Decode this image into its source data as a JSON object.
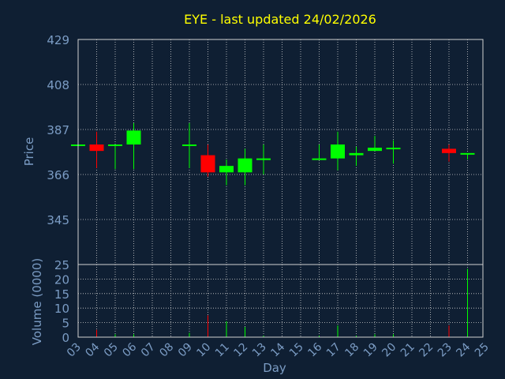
{
  "chart_data": [
    {
      "type": "candlestick",
      "title": "EYE - last updated 24/02/2026",
      "ylabel": "Price",
      "xlabel": "",
      "ylim": [
        324,
        429
      ],
      "yticks": [
        "429",
        "408",
        "387",
        "366",
        "345"
      ],
      "ytick_values": [
        429,
        408,
        387,
        366,
        345
      ],
      "grid": true,
      "colors": {
        "up": "#00ff00",
        "down": "#ff0000",
        "title": "#ffff00",
        "axis_text": "#7b9cc4",
        "background": "#0f1f33",
        "grid": "#d0d0d0"
      },
      "candles": [
        {
          "day": 3,
          "open": 380,
          "high": 380,
          "low": 380,
          "close": 380
        },
        {
          "day": 4,
          "open": 380,
          "high": 386,
          "low": 369,
          "close": 377
        },
        {
          "day": 5,
          "open": 380,
          "high": 380,
          "low": 368.5,
          "close": 380
        },
        {
          "day": 6,
          "open": 380,
          "high": 390,
          "low": 368.5,
          "close": 386.5
        },
        {
          "day": 9,
          "open": 380,
          "high": 390,
          "low": 369,
          "close": 380
        },
        {
          "day": 10,
          "open": 375,
          "high": 380,
          "low": 365,
          "close": 367
        },
        {
          "day": 11,
          "open": 367,
          "high": 373,
          "low": 361,
          "close": 370
        },
        {
          "day": 12,
          "open": 367,
          "high": 378,
          "low": 361,
          "close": 373.5
        },
        {
          "day": 13,
          "open": 373,
          "high": 380,
          "low": 366,
          "close": 373.5
        },
        {
          "day": 16,
          "open": 373,
          "high": 380,
          "low": 373,
          "close": 373.5
        },
        {
          "day": 17,
          "open": 373.5,
          "high": 386,
          "low": 368,
          "close": 380
        },
        {
          "day": 18,
          "open": 375,
          "high": 379,
          "low": 370,
          "close": 376
        },
        {
          "day": 19,
          "open": 377,
          "high": 384,
          "low": 377,
          "close": 378.5
        },
        {
          "day": 20,
          "open": 378,
          "high": 382,
          "low": 371,
          "close": 378.5
        },
        {
          "day": 23,
          "open": 378,
          "high": 380,
          "low": 372,
          "close": 376
        },
        {
          "day": 24,
          "open": 375.5,
          "high": 376,
          "low": 373,
          "close": 376
        }
      ]
    },
    {
      "type": "bar",
      "ylabel": "Volume (0000)",
      "xlabel": "Day",
      "ylim": [
        0,
        25
      ],
      "yticks": [
        "25",
        "20",
        "15",
        "10",
        "5",
        "0"
      ],
      "ytick_values": [
        25,
        20,
        15,
        10,
        5,
        0
      ],
      "categories": [
        "03",
        "04",
        "05",
        "06",
        "07",
        "08",
        "09",
        "10",
        "11",
        "12",
        "13",
        "14",
        "15",
        "16",
        "17",
        "18",
        "19",
        "20",
        "21",
        "22",
        "23",
        "24",
        "25"
      ],
      "day_values": [
        3,
        4,
        5,
        6,
        7,
        8,
        9,
        10,
        11,
        12,
        13,
        14,
        15,
        16,
        17,
        18,
        19,
        20,
        21,
        22,
        23,
        24,
        25
      ],
      "bars": [
        {
          "day": 3,
          "value": 0.3,
          "direction": "up"
        },
        {
          "day": 4,
          "value": 2.5,
          "direction": "down"
        },
        {
          "day": 5,
          "value": 1.0,
          "direction": "up"
        },
        {
          "day": 6,
          "value": 1.0,
          "direction": "up"
        },
        {
          "day": 9,
          "value": 1.5,
          "direction": "up"
        },
        {
          "day": 10,
          "value": 7.5,
          "direction": "down"
        },
        {
          "day": 11,
          "value": 5.5,
          "direction": "up"
        },
        {
          "day": 12,
          "value": 3.5,
          "direction": "up"
        },
        {
          "day": 13,
          "value": 0.5,
          "direction": "up"
        },
        {
          "day": 16,
          "value": 0.5,
          "direction": "up"
        },
        {
          "day": 17,
          "value": 4.0,
          "direction": "up"
        },
        {
          "day": 18,
          "value": 0.5,
          "direction": "up"
        },
        {
          "day": 19,
          "value": 1.0,
          "direction": "up"
        },
        {
          "day": 20,
          "value": 1.0,
          "direction": "up"
        },
        {
          "day": 23,
          "value": 4.0,
          "direction": "down"
        },
        {
          "day": 24,
          "value": 23.5,
          "direction": "up"
        }
      ]
    }
  ]
}
